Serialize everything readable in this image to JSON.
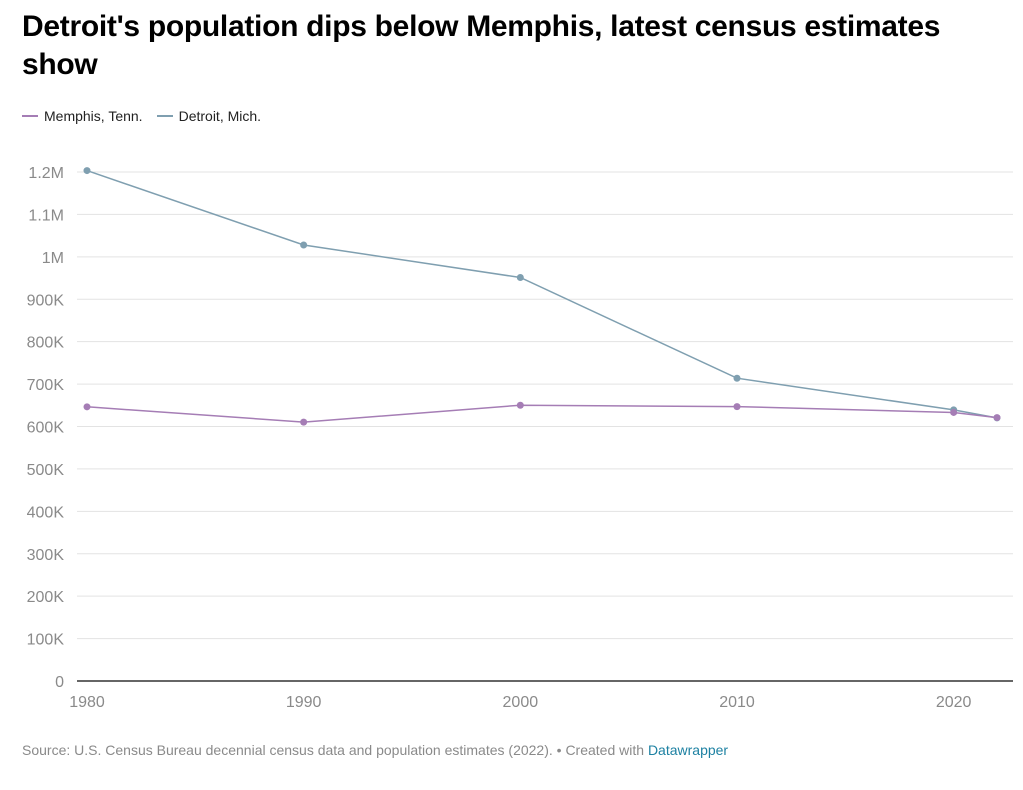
{
  "chart_data": {
    "type": "line",
    "title": "Detroit's population dips below Memphis, latest census estimates show",
    "xlabel": "",
    "ylabel": "",
    "x": [
      1980,
      1990,
      2000,
      2010,
      2020,
      2022
    ],
    "x_ticks": [
      1980,
      1990,
      2000,
      2010,
      2020
    ],
    "x_tick_labels": [
      "1980",
      "1990",
      "2000",
      "2010",
      "2020"
    ],
    "xlim": [
      1980,
      2022
    ],
    "ylim": [
      0,
      1200000
    ],
    "y_ticks": [
      0,
      100000,
      200000,
      300000,
      400000,
      500000,
      600000,
      700000,
      800000,
      900000,
      1000000,
      1100000,
      1200000
    ],
    "y_tick_labels": [
      "0",
      "100K",
      "200K",
      "300K",
      "400K",
      "500K",
      "600K",
      "700K",
      "800K",
      "900K",
      "1M",
      "1.1M",
      "1.2M"
    ],
    "grid": true,
    "legend_position": "top-left",
    "series": [
      {
        "name": "Memphis, Tenn.",
        "color": "#a57db5",
        "values": [
          646356,
          610337,
          650100,
          646889,
          633104,
          621056
        ]
      },
      {
        "name": "Detroit, Mich.",
        "color": "#7f9fb0",
        "values": [
          1203339,
          1027974,
          951270,
          713777,
          639111,
          620376
        ]
      }
    ]
  },
  "footer": {
    "source_text": "Source: U.S. Census Bureau decennial census data and population estimates (2022). • Created with ",
    "link_text": "Datawrapper",
    "link_color": "#1d81a2"
  }
}
